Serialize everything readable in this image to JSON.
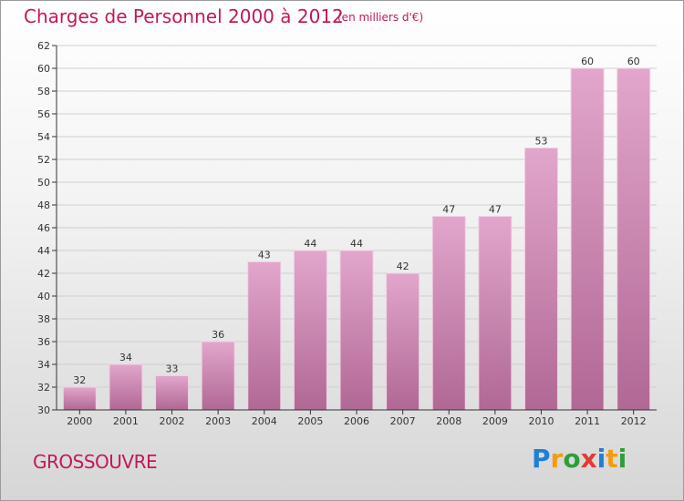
{
  "title": "Charges de Personnel 2000 à 2012",
  "subtitle": "(en milliers d'€)",
  "commune": "GROSSOUVRE",
  "logo": {
    "letters": [
      "P",
      "r",
      "o",
      "x",
      "i",
      "t",
      "i"
    ],
    "colors": [
      "#1e7fd6",
      "#f39c12",
      "#2e9e3a",
      "#e53935",
      "#1e7fd6",
      "#f39c12",
      "#2e9e3a"
    ]
  },
  "colors": {
    "bar_top": "#e2a6cc",
    "bar_bottom": "#b06894",
    "bar_edge": "#f2cfe4",
    "axis": "#333333",
    "grid": "#cfcfcf"
  },
  "chart_data": {
    "type": "bar",
    "categories": [
      "2000",
      "2001",
      "2002",
      "2003",
      "2004",
      "2005",
      "2006",
      "2007",
      "2008",
      "2009",
      "2010",
      "2011",
      "2012"
    ],
    "values": [
      32,
      34,
      33,
      36,
      43,
      44,
      44,
      42,
      47,
      47,
      53,
      60,
      60
    ],
    "ylim": [
      30,
      62
    ],
    "yticks": [
      30,
      32,
      34,
      36,
      38,
      40,
      42,
      44,
      46,
      48,
      50,
      52,
      54,
      56,
      58,
      60,
      62
    ],
    "grid": "horizontal",
    "data_labels": true
  }
}
